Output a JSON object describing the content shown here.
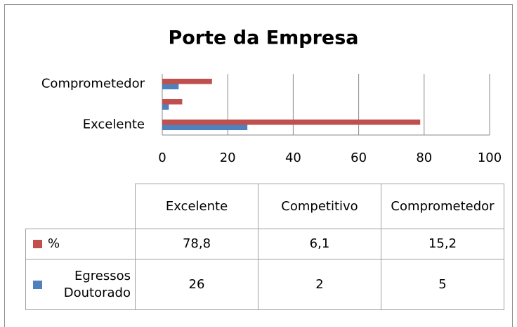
{
  "chart_data": {
    "type": "bar",
    "orientation": "horizontal",
    "title": "Porte da Empresa",
    "categories": [
      "Excelente",
      "Competitivo",
      "Comprometedor"
    ],
    "category_label_step": 2,
    "series": [
      {
        "name": "%",
        "color": "#c0504d",
        "values": [
          78.8,
          6.1,
          15.2
        ],
        "value_labels": [
          "78,8",
          "6,1",
          "15,2"
        ]
      },
      {
        "name": "Egressos Doutorado",
        "color": "#4f81bd",
        "values": [
          26,
          2,
          5
        ]
      }
    ],
    "xlim": [
      0,
      100
    ],
    "xticks": [
      0,
      20,
      40,
      60,
      80,
      100
    ],
    "grid": true,
    "data_table": true
  }
}
